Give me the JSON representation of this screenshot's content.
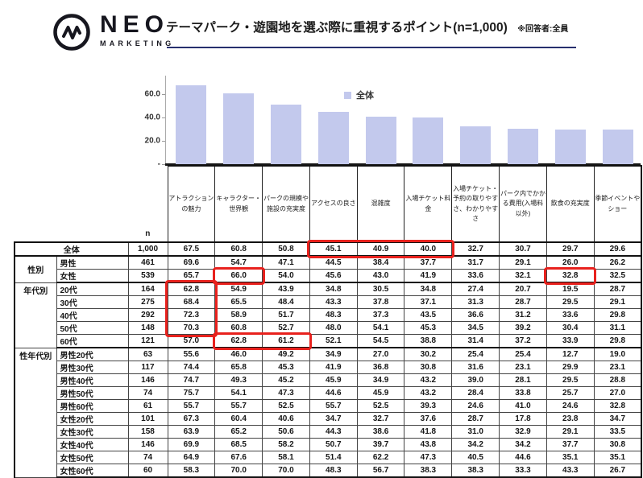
{
  "header": {
    "logo_name": "NEO",
    "logo_sub": "MARKETING",
    "title": "テーマパーク・遊園地を選ぶ際に重視するポイント(n=1,000)",
    "note": "※回答者:全員"
  },
  "chart_data": {
    "type": "bar",
    "title": "",
    "categories": [
      "アトラクションの魅力",
      "キャラクター・世界観",
      "パークの規模や施設の充実度",
      "アクセスの良さ",
      "混雑度",
      "入場チケット料金",
      "入場チケット・予約の取りやすさ、わかりやすさ",
      "パーク内でかかる費用(入場料以外)",
      "飲食の充実度",
      "季節イベントやショー"
    ],
    "values": [
      67.5,
      60.8,
      50.8,
      45.1,
      40.9,
      40.0,
      32.7,
      30.7,
      29.7,
      29.6
    ],
    "legend": "全体",
    "legend_position": "top-center",
    "y_ticks": [
      {
        "label": "60.0",
        "v": 60
      },
      {
        "label": "40.0",
        "v": 40
      },
      {
        "label": "20.0",
        "v": 20
      },
      {
        "label": "-",
        "v": 0
      }
    ],
    "ylim": [
      0,
      78.6
    ],
    "grid": false,
    "bar_color": "#c3c9ed"
  },
  "table": {
    "n_header": "n",
    "columns": [
      "アトラクションの魅力",
      "キャラクター・世界観",
      "パークの規模や施設の充実度",
      "アクセスの良さ",
      "混雑度",
      "入場チケット料金",
      "入場チケット・予約の取りやすさ、わかりやすさ",
      "パーク内でかかる費用(入場料以外)",
      "飲食の充実度",
      "季節イベントやショー"
    ],
    "groups": [
      {
        "label": "",
        "rows": [
          {
            "label": "全体",
            "merged": true,
            "n": "1,000",
            "values": [
              "67.5",
              "60.8",
              "50.8",
              "45.1",
              "40.9",
              "40.0",
              "32.7",
              "30.7",
              "29.7",
              "29.6"
            ]
          }
        ]
      },
      {
        "label": "性別",
        "valign": "middle",
        "rows": [
          {
            "label": "男性",
            "n": "461",
            "values": [
              "69.6",
              "54.7",
              "47.1",
              "44.5",
              "38.4",
              "37.7",
              "31.7",
              "29.1",
              "26.0",
              "26.2"
            ]
          },
          {
            "label": "女性",
            "n": "539",
            "values": [
              "65.7",
              "66.0",
              "54.0",
              "45.6",
              "43.0",
              "41.9",
              "33.6",
              "32.1",
              "32.8",
              "32.5"
            ]
          }
        ]
      },
      {
        "label": "年代別",
        "valign": "top",
        "rows": [
          {
            "label": "20代",
            "n": "164",
            "values": [
              "62.8",
              "54.9",
              "43.9",
              "34.8",
              "30.5",
              "34.8",
              "27.4",
              "20.7",
              "19.5",
              "28.7"
            ]
          },
          {
            "label": "30代",
            "n": "275",
            "values": [
              "68.4",
              "65.5",
              "48.4",
              "43.3",
              "37.8",
              "37.1",
              "31.3",
              "28.7",
              "29.5",
              "29.1"
            ]
          },
          {
            "label": "40代",
            "n": "292",
            "values": [
              "72.3",
              "58.9",
              "51.7",
              "48.3",
              "37.3",
              "43.5",
              "36.6",
              "31.2",
              "33.6",
              "29.8"
            ]
          },
          {
            "label": "50代",
            "n": "148",
            "values": [
              "70.3",
              "60.8",
              "52.7",
              "48.0",
              "54.1",
              "45.3",
              "34.5",
              "39.2",
              "30.4",
              "31.1"
            ]
          },
          {
            "label": "60代",
            "n": "121",
            "values": [
              "57.0",
              "62.8",
              "61.2",
              "52.1",
              "54.5",
              "38.8",
              "31.4",
              "37.2",
              "33.9",
              "29.8"
            ]
          }
        ]
      },
      {
        "label": "性年代別",
        "valign": "top",
        "rows": [
          {
            "label": "男性20代",
            "n": "63",
            "values": [
              "55.6",
              "46.0",
              "49.2",
              "34.9",
              "27.0",
              "30.2",
              "25.4",
              "25.4",
              "12.7",
              "19.0"
            ]
          },
          {
            "label": "男性30代",
            "n": "117",
            "values": [
              "74.4",
              "65.8",
              "45.3",
              "41.9",
              "36.8",
              "30.8",
              "31.6",
              "23.1",
              "29.9",
              "23.1"
            ]
          },
          {
            "label": "男性40代",
            "n": "146",
            "values": [
              "74.7",
              "49.3",
              "45.2",
              "45.9",
              "34.9",
              "43.2",
              "39.0",
              "28.1",
              "29.5",
              "28.8"
            ]
          },
          {
            "label": "男性50代",
            "n": "74",
            "values": [
              "75.7",
              "54.1",
              "47.3",
              "44.6",
              "45.9",
              "43.2",
              "28.4",
              "33.8",
              "25.7",
              "27.0"
            ]
          },
          {
            "label": "男性60代",
            "n": "61",
            "values": [
              "55.7",
              "55.7",
              "52.5",
              "55.7",
              "52.5",
              "39.3",
              "24.6",
              "41.0",
              "24.6",
              "32.8"
            ]
          },
          {
            "label": "女性20代",
            "n": "101",
            "values": [
              "67.3",
              "60.4",
              "40.6",
              "34.7",
              "32.7",
              "37.6",
              "28.7",
              "17.8",
              "23.8",
              "34.7"
            ]
          },
          {
            "label": "女性30代",
            "n": "158",
            "values": [
              "63.9",
              "65.2",
              "50.6",
              "44.3",
              "38.6",
              "41.8",
              "31.0",
              "32.9",
              "29.1",
              "33.5"
            ]
          },
          {
            "label": "女性40代",
            "n": "146",
            "values": [
              "69.9",
              "68.5",
              "58.2",
              "50.7",
              "39.7",
              "43.8",
              "34.2",
              "34.2",
              "37.7",
              "30.8"
            ]
          },
          {
            "label": "女性50代",
            "n": "74",
            "values": [
              "64.9",
              "67.6",
              "58.1",
              "51.4",
              "62.2",
              "47.3",
              "40.5",
              "44.6",
              "35.1",
              "35.1"
            ]
          },
          {
            "label": "女性60代",
            "n": "60",
            "values": [
              "58.3",
              "70.0",
              "70.0",
              "48.3",
              "56.7",
              "38.3",
              "38.3",
              "33.3",
              "43.3",
              "26.7"
            ]
          }
        ]
      }
    ],
    "highlights": [
      {
        "r0": 0,
        "r1": 0,
        "c0": 3,
        "c1": 5
      },
      {
        "r0": 2,
        "r1": 2,
        "c0": 1,
        "c1": 1
      },
      {
        "r0": 2,
        "r1": 2,
        "c0": 8,
        "c1": 8
      },
      {
        "r0": 3,
        "r1": 6,
        "c0": 0,
        "c1": 0
      },
      {
        "r0": 7,
        "r1": 7,
        "c0": 1,
        "c1": 2
      }
    ]
  },
  "colors": {
    "bar": "#c3c9ed",
    "underline": "#27306e",
    "highlight": "#e8211d",
    "logo": "#17171f"
  }
}
